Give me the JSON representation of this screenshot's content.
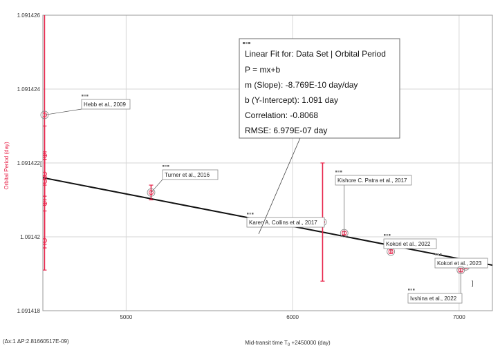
{
  "chart_data": {
    "type": "scatter",
    "xlabel": "Mid-transit time T",
    "xlabel_sub": "0",
    "xlabel_suffix": " +2450000 (day)",
    "ylabel": "Orbital Period (day)",
    "xlim": [
      4500,
      7200
    ],
    "ylim": [
      1.091418,
      1.091426
    ],
    "x_ticks": [
      5000,
      6000,
      7000
    ],
    "y_ticks": [
      1.091418,
      1.09142,
      1.091422,
      1.091424,
      1.091426
    ],
    "y_tick_labels": [
      "1.091418",
      "1.09142",
      "1.091422",
      "1.091424",
      "1.091426"
    ],
    "grid": true,
    "colors": {
      "points": "#e8244a",
      "fit_line": "#111111",
      "ylabel": "#e8244a",
      "grid": "#d6d6d6"
    },
    "series": [
      {
        "points": [
          {
            "x": 4510,
            "y": 1.0914233,
            "err": 3.5e-06
          },
          {
            "x": 4510,
            "y": 1.0914222,
            "err": 8e-07
          },
          {
            "x": 4510,
            "y": 1.0914217,
            "err": 6e-07
          },
          {
            "x": 4510,
            "y": 1.0914216,
            "err": 6e-07
          },
          {
            "x": 4510,
            "y": 1.0914215,
            "err": 6e-07
          },
          {
            "x": 4510,
            "y": 1.0914209,
            "err": 1.2e-06
          },
          {
            "x": 4510,
            "y": 1.0914199,
            "err": 8e-07
          },
          {
            "x": 5150,
            "y": 1.0914212,
            "err": 2e-07
          },
          {
            "x": 6180,
            "y": 1.0914204,
            "err": 1.6e-06
          },
          {
            "x": 6310,
            "y": 1.0914201,
            "err": 5e-08
          },
          {
            "x": 6590,
            "y": 1.0914196,
            "err": 5e-08
          },
          {
            "x": 7010,
            "y": 1.0914191,
            "err": 5e-08
          },
          {
            "x": 7040,
            "y": 1.0914192,
            "err": 5e-08
          }
        ]
      }
    ],
    "annotations": [
      {
        "label": "Hebb et al., 2009",
        "point": 0
      },
      {
        "label": "Turner et al., 2016",
        "point": 7
      },
      {
        "label": "Karen A. Collins et al., 2017",
        "point": 8
      },
      {
        "label": "Kishore C. Patra et al., 2017",
        "point": 9
      },
      {
        "label": "Kokori et al., 2022",
        "point": 10
      },
      {
        "label": "Kokori et al., 2023",
        "point": 12
      },
      {
        "label": "Ivshina et al., 2022",
        "point": 11
      }
    ],
    "fit": {
      "type": "linear",
      "x_range": [
        4500,
        7200
      ],
      "slope": -8.769e-10,
      "y_at_x_start": 1.0914216,
      "lines": [
        "Linear Fit for: Data Set | Orbital Period",
        "P = mx+b",
        "m (Slope): -8.769E-10 day/day",
        "b (Y-Intercept): 1.091 day",
        "Correlation: -0.8068",
        "RMSE: 6.979E-07 day"
      ]
    },
    "footer": "(Δx:1 ΔP:2.81660517E-09)"
  }
}
